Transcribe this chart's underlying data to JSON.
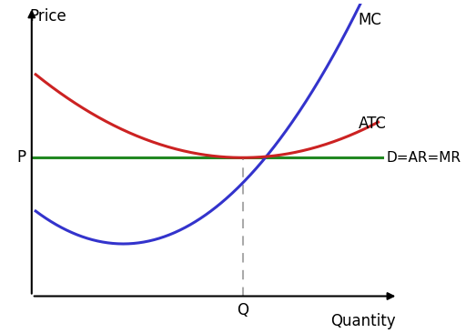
{
  "xlabel": "Quantity",
  "ylabel": "Price",
  "background_color": "#ffffff",
  "xlim": [
    0,
    10
  ],
  "ylim": [
    0,
    10
  ],
  "price_level": 5.0,
  "quantity_level": 6.0,
  "mc_color": "#3333cc",
  "atc_color": "#cc2222",
  "dar_color": "#228822",
  "dashed_color": "#aaaaaa",
  "label_mc": "MC",
  "label_atc": "ATC",
  "label_dar": "D=AR=MR",
  "label_p": "P",
  "label_q": "Q",
  "axis_label_fontsize": 12,
  "curve_label_fontsize": 12,
  "tick_label_fontsize": 12,
  "linewidth": 2.2,
  "xmin_mc": 3.0,
  "mc_min": 2.2,
  "a_mc": 0.22,
  "xmin_atc": 6.0,
  "atc_min": 5.0,
  "a_atc": 0.1,
  "x_start": 0.8,
  "x_end": 9.4
}
